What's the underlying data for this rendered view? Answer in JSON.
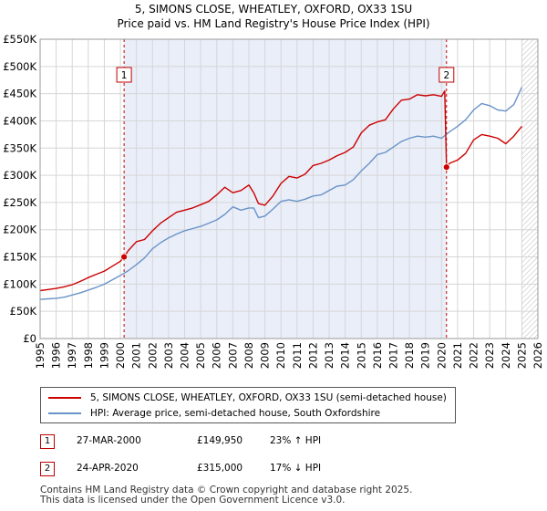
{
  "chart_data": {
    "type": "line",
    "title": "5, SIMONS CLOSE, WHEATLEY, OXFORD, OX33 1SU",
    "subtitle": "Price paid vs. HM Land Registry's House Price Index (HPI)",
    "xlabel": "",
    "ylabel": "",
    "xlim": [
      1995,
      2026
    ],
    "ylim": [
      0,
      550000
    ],
    "x_ticks": [
      1995,
      1996,
      1997,
      1998,
      1999,
      2000,
      2001,
      2002,
      2003,
      2004,
      2005,
      2006,
      2007,
      2008,
      2009,
      2010,
      2011,
      2012,
      2013,
      2014,
      2015,
      2016,
      2017,
      2018,
      2019,
      2020,
      2021,
      2022,
      2023,
      2024,
      2025,
      2026
    ],
    "y_ticks": [
      {
        "value": 0,
        "label": "£0"
      },
      {
        "value": 50000,
        "label": "£50K"
      },
      {
        "value": 100000,
        "label": "£100K"
      },
      {
        "value": 150000,
        "label": "£150K"
      },
      {
        "value": 200000,
        "label": "£200K"
      },
      {
        "value": 250000,
        "label": "£250K"
      },
      {
        "value": 300000,
        "label": "£300K"
      },
      {
        "value": 350000,
        "label": "£350K"
      },
      {
        "value": 400000,
        "label": "£400K"
      },
      {
        "value": 450000,
        "label": "£450K"
      },
      {
        "value": 500000,
        "label": "£500K"
      },
      {
        "value": 550000,
        "label": "£550K"
      }
    ],
    "grid": true,
    "shaded_region": [
      2000.23,
      2020.31
    ],
    "forecast_hatch_from": 2025.0,
    "colors": {
      "property": "#cc0000",
      "hpi": "#6a93c8",
      "shade": "#e9eef9",
      "marker_border": "#c00000"
    },
    "series": [
      {
        "name": "5, SIMONS CLOSE, WHEATLEY, OXFORD, OX33 1SU (semi-detached house)",
        "color": "#cc0000",
        "x": [
          1995.0,
          1995.5,
          1996.0,
          1996.5,
          1997.0,
          1997.5,
          1998.0,
          1998.5,
          1999.0,
          1999.5,
          2000.0,
          2000.23,
          2000.5,
          2001.0,
          2001.5,
          2002.0,
          2002.5,
          2003.0,
          2003.5,
          2004.0,
          2004.5,
          2005.0,
          2005.5,
          2006.0,
          2006.5,
          2007.0,
          2007.5,
          2008.0,
          2008.3,
          2008.6,
          2009.0,
          2009.5,
          2010.0,
          2010.5,
          2011.0,
          2011.5,
          2012.0,
          2012.5,
          2013.0,
          2013.5,
          2014.0,
          2014.5,
          2015.0,
          2015.5,
          2016.0,
          2016.5,
          2017.0,
          2017.5,
          2018.0,
          2018.5,
          2019.0,
          2019.5,
          2020.0,
          2020.2,
          2020.31,
          2020.5,
          2021.0,
          2021.5,
          2022.0,
          2022.5,
          2023.0,
          2023.5,
          2024.0,
          2024.5,
          2025.0
        ],
        "values": [
          88000,
          90000,
          92000,
          95000,
          99000,
          105000,
          112000,
          118000,
          124000,
          133000,
          142000,
          149950,
          162000,
          178000,
          182000,
          198000,
          212000,
          222000,
          232000,
          236000,
          240000,
          246000,
          252000,
          264000,
          278000,
          268000,
          272000,
          282000,
          268000,
          248000,
          245000,
          262000,
          285000,
          298000,
          295000,
          302000,
          318000,
          322000,
          328000,
          336000,
          342000,
          352000,
          378000,
          392000,
          398000,
          402000,
          422000,
          438000,
          440000,
          448000,
          446000,
          448000,
          445000,
          455000,
          315000,
          322000,
          328000,
          340000,
          365000,
          375000,
          372000,
          368000,
          358000,
          372000,
          390000
        ]
      },
      {
        "name": "HPI: Average price, semi-detached house, South Oxfordshire",
        "color": "#6a93c8",
        "x": [
          1995.0,
          1995.5,
          1996.0,
          1996.5,
          1997.0,
          1997.5,
          1998.0,
          1998.5,
          1999.0,
          1999.5,
          2000.0,
          2000.5,
          2001.0,
          2001.5,
          2002.0,
          2002.5,
          2003.0,
          2003.5,
          2004.0,
          2004.5,
          2005.0,
          2005.5,
          2006.0,
          2006.5,
          2007.0,
          2007.5,
          2008.0,
          2008.3,
          2008.6,
          2009.0,
          2009.5,
          2010.0,
          2010.5,
          2011.0,
          2011.5,
          2012.0,
          2012.5,
          2013.0,
          2013.5,
          2014.0,
          2014.5,
          2015.0,
          2015.5,
          2016.0,
          2016.5,
          2017.0,
          2017.5,
          2018.0,
          2018.5,
          2019.0,
          2019.5,
          2020.0,
          2020.5,
          2021.0,
          2021.5,
          2022.0,
          2022.5,
          2023.0,
          2023.5,
          2024.0,
          2024.5,
          2025.0
        ],
        "values": [
          72000,
          73000,
          74000,
          76000,
          80000,
          84000,
          89000,
          94000,
          100000,
          108000,
          116000,
          125000,
          136000,
          148000,
          165000,
          176000,
          185000,
          192000,
          198000,
          202000,
          206000,
          212000,
          218000,
          228000,
          242000,
          236000,
          240000,
          240000,
          222000,
          225000,
          238000,
          252000,
          255000,
          252000,
          256000,
          262000,
          264000,
          272000,
          280000,
          282000,
          292000,
          308000,
          322000,
          338000,
          342000,
          352000,
          362000,
          368000,
          372000,
          370000,
          372000,
          368000,
          380000,
          390000,
          402000,
          420000,
          432000,
          428000,
          420000,
          418000,
          430000,
          462000
        ]
      }
    ],
    "markers": [
      {
        "label": "1",
        "x": 2000.23,
        "value": 149950
      },
      {
        "label": "2",
        "x": 2020.31,
        "value": 315000
      }
    ]
  },
  "legend": {
    "property_label": "5, SIMONS CLOSE, WHEATLEY, OXFORD, OX33 1SU (semi-detached house)",
    "hpi_label": "HPI: Average price, semi-detached house, South Oxfordshire"
  },
  "annotations": [
    {
      "num": "1",
      "date": "27-MAR-2000",
      "price": "£149,950",
      "hpi": "23% ↑ HPI"
    },
    {
      "num": "2",
      "date": "24-APR-2020",
      "price": "£315,000",
      "hpi": "17% ↓ HPI"
    }
  ],
  "footer": {
    "line1": "Contains HM Land Registry data © Crown copyright and database right 2025.",
    "line2": "This data is licensed under the Open Government Licence v3.0."
  }
}
